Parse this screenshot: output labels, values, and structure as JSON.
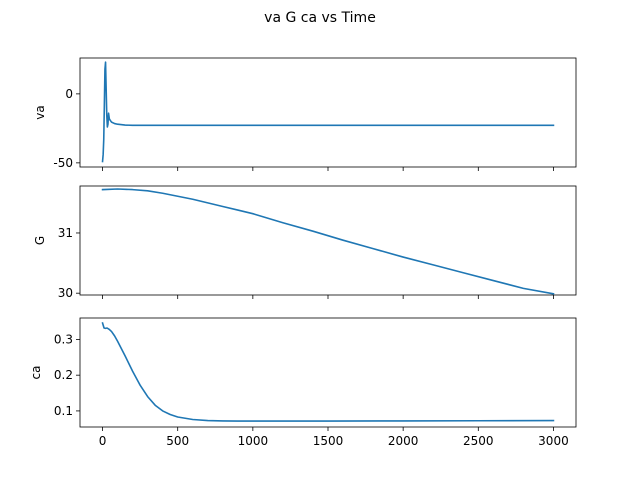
{
  "chart_data": {
    "type": "line",
    "title": "va G ca vs Time",
    "line_color": "#1f77b4",
    "xlim": [
      -150,
      3150
    ],
    "xticks": [
      0,
      500,
      1000,
      1500,
      2000,
      2500,
      3000
    ],
    "xtick_labels": [
      "0",
      "500",
      "1000",
      "1500",
      "2000",
      "2500",
      "3000"
    ],
    "xlabel": "",
    "grid": false,
    "subplots": [
      {
        "ylabel": "va",
        "ylim": [
          -53,
          26
        ],
        "yticks": [
          0,
          -50
        ],
        "ytick_labels": [
          "0",
          "-50"
        ],
        "series": [
          {
            "x": [
              0,
              4,
              8,
              12,
              16,
              20,
              24,
              28,
              32,
              36,
              40,
              45,
              50,
              60,
              80,
              100,
              150,
              200,
              300,
              500,
              1000,
              1500,
              2000,
              2500,
              3000
            ],
            "y": [
              -49,
              -44,
              -33,
              -8,
              18,
              23,
              4,
              -15,
              -24,
              -22,
              -14,
              -18,
              -19,
              -20.5,
              -21.5,
              -22,
              -22.6,
              -22.8,
              -22.8,
              -22.8,
              -22.8,
              -22.8,
              -22.8,
              -22.8,
              -22.8
            ]
          }
        ]
      },
      {
        "ylabel": "G",
        "ylim": [
          29.97,
          31.78
        ],
        "yticks": [
          31,
          30
        ],
        "ytick_labels": [
          "31",
          "30"
        ],
        "series": [
          {
            "x": [
              0,
              100,
              200,
              300,
              400,
              500,
              600,
              700,
              800,
              900,
              1000,
              1200,
              1400,
              1600,
              1800,
              2000,
              2200,
              2400,
              2600,
              2800,
              3000
            ],
            "y": [
              31.72,
              31.73,
              31.72,
              31.7,
              31.66,
              31.61,
              31.56,
              31.5,
              31.44,
              31.38,
              31.32,
              31.17,
              31.03,
              30.88,
              30.74,
              30.6,
              30.47,
              30.34,
              30.21,
              30.08,
              29.99
            ]
          }
        ]
      },
      {
        "ylabel": "ca",
        "ylim": [
          0.055,
          0.36
        ],
        "yticks": [
          0.3,
          0.2,
          0.1
        ],
        "ytick_labels": [
          "0.3",
          "0.2",
          "0.1"
        ],
        "series": [
          {
            "x": [
              0,
              10,
              20,
              30,
              45,
              60,
              80,
              100,
              150,
              200,
              250,
              300,
              350,
              400,
              450,
              500,
              600,
              700,
              800,
              900,
              1000,
              1500,
              2000,
              2500,
              3000
            ],
            "y": [
              0.346,
              0.332,
              0.331,
              0.332,
              0.328,
              0.322,
              0.31,
              0.295,
              0.254,
              0.211,
              0.172,
              0.14,
              0.116,
              0.1,
              0.09,
              0.083,
              0.076,
              0.073,
              0.072,
              0.0715,
              0.0715,
              0.0715,
              0.072,
              0.0725,
              0.073
            ]
          }
        ]
      }
    ]
  }
}
